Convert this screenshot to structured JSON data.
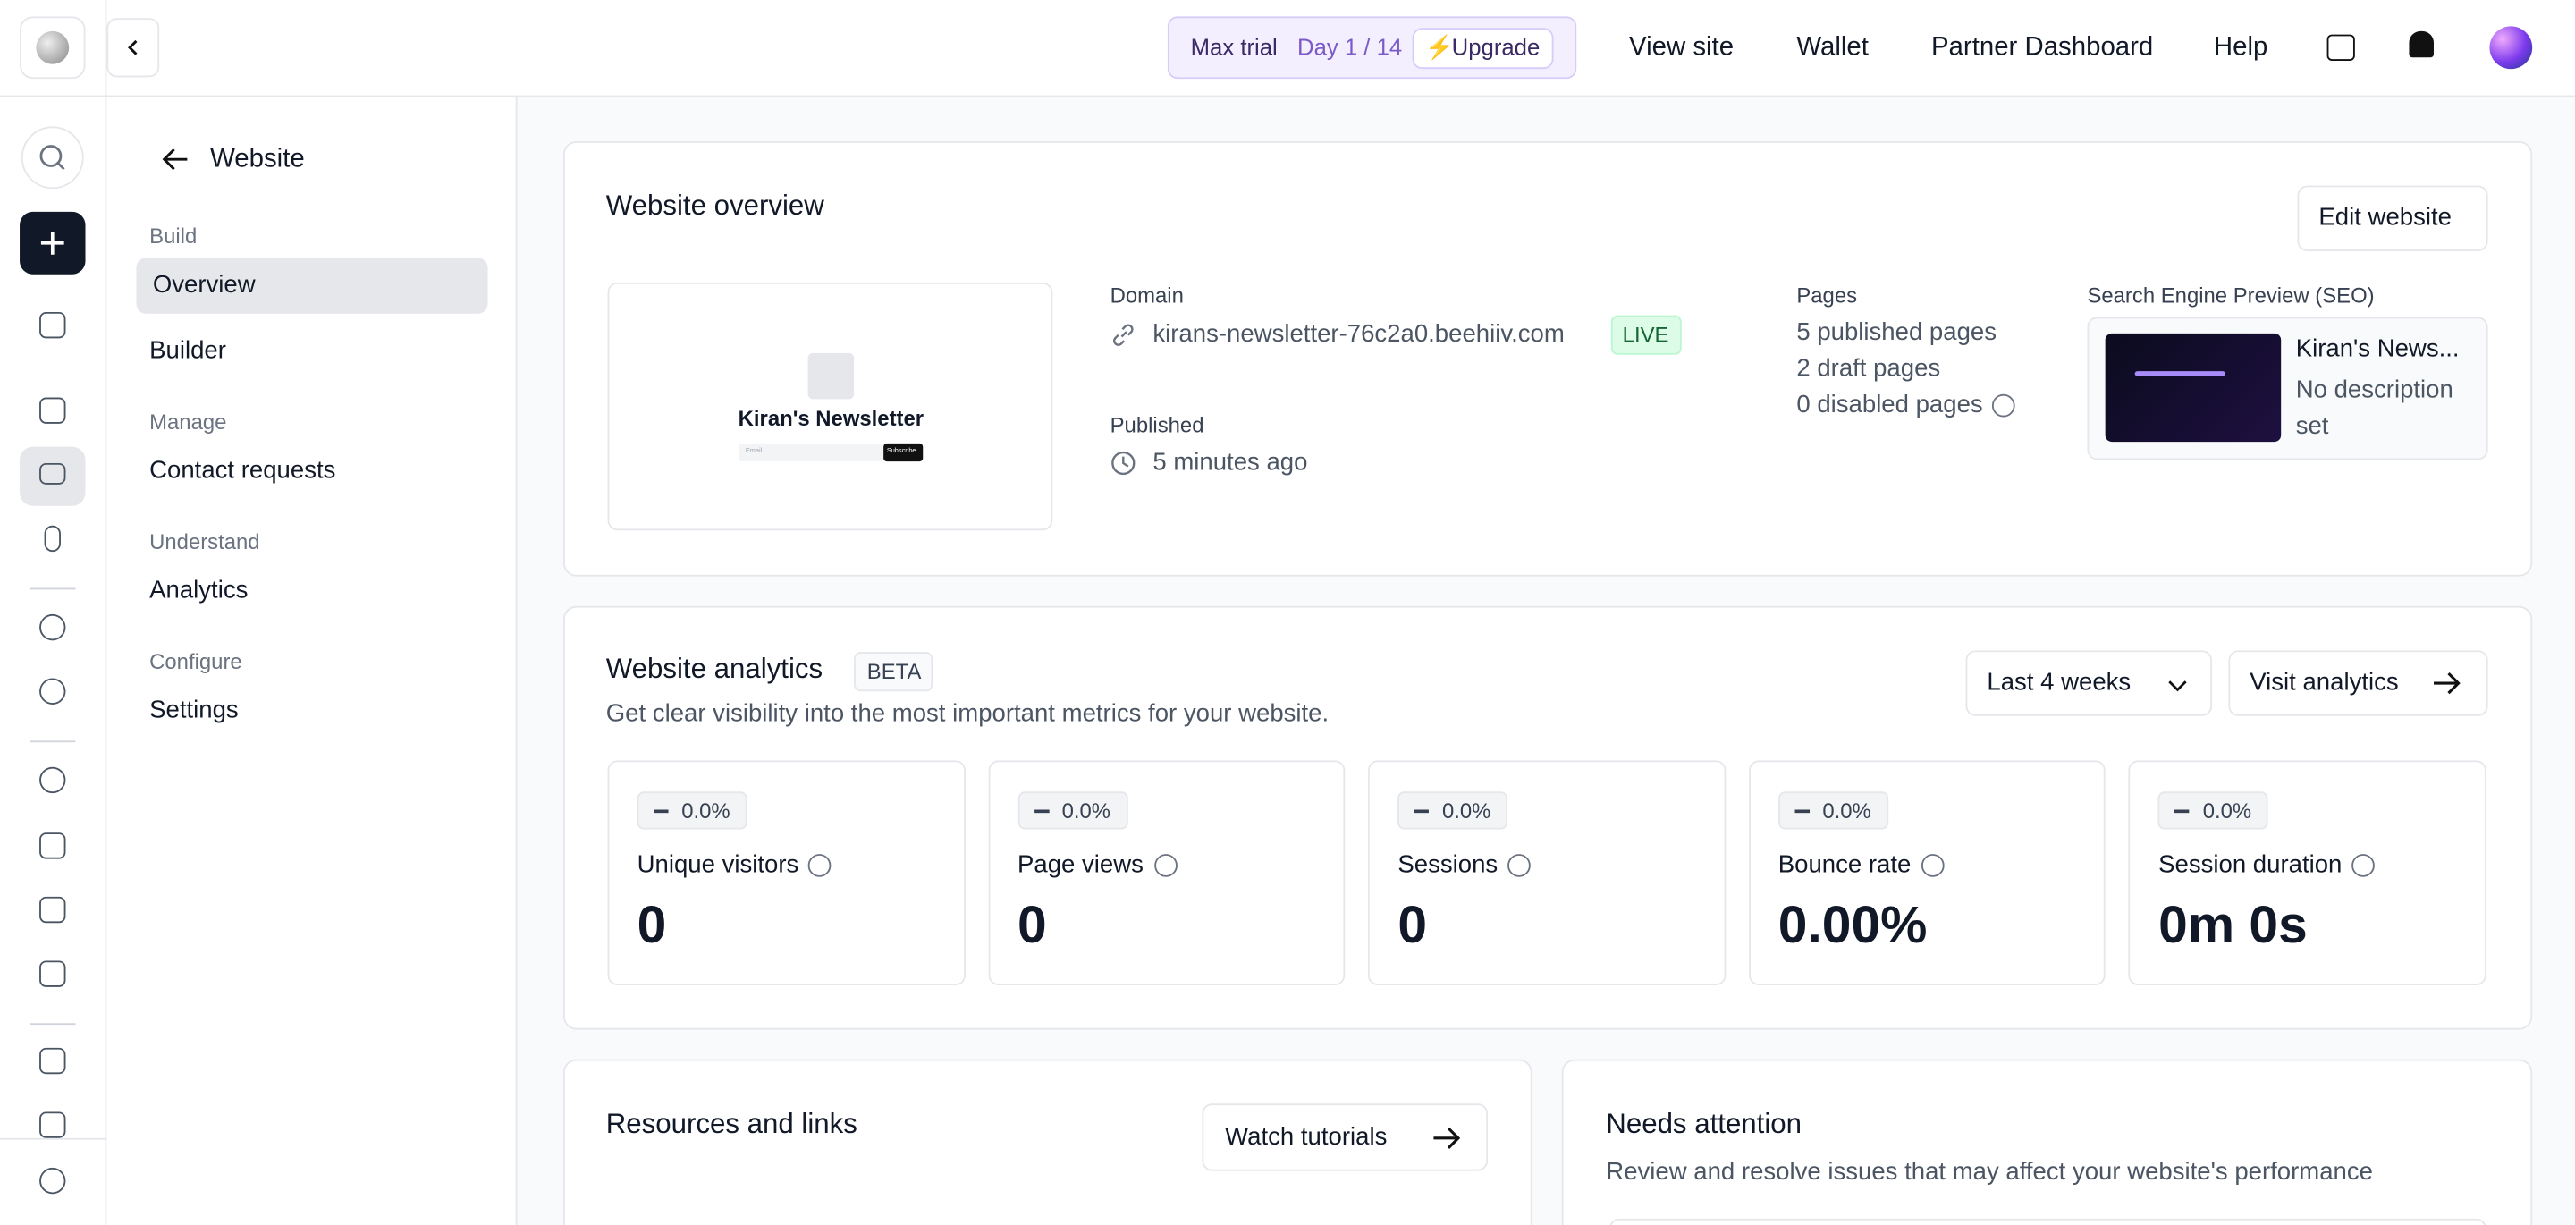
{
  "topbar": {
    "trial_label": "Max trial",
    "trial_day": "Day 1 / 14",
    "upgrade": "Upgrade",
    "nav": [
      "View site",
      "Wallet",
      "Partner Dashboard",
      "Help"
    ]
  },
  "sidebar": {
    "back_title": "Website",
    "sections": [
      {
        "heading": "Build",
        "items": [
          "Overview",
          "Builder"
        ]
      },
      {
        "heading": "Manage",
        "items": [
          "Contact requests"
        ]
      },
      {
        "heading": "Understand",
        "items": [
          "Analytics"
        ]
      },
      {
        "heading": "Configure",
        "items": [
          "Settings"
        ]
      }
    ]
  },
  "overview": {
    "title": "Website overview",
    "edit_button": "Edit website",
    "preview_name": "Kiran's Newsletter",
    "preview_input": "Email",
    "preview_button": "Subscribe",
    "domain_label": "Domain",
    "domain": "kirans-newsletter-76c2a0.beehiiv.com",
    "live": "LIVE",
    "published_label": "Published",
    "published": "5 minutes ago",
    "pages_label": "Pages",
    "pages": [
      "5 published pages",
      "2 draft pages",
      "0 disabled pages"
    ],
    "seo_label": "Search Engine Preview (SEO)",
    "seo_title": "Kiran's News...",
    "seo_desc": "No description set"
  },
  "analytics": {
    "title": "Website analytics",
    "badge": "BETA",
    "subtitle": "Get clear visibility into the most important metrics for your website.",
    "range": "Last 4 weeks",
    "visit": "Visit analytics",
    "metrics": [
      {
        "change": "0.0%",
        "label": "Unique visitors",
        "value": "0"
      },
      {
        "change": "0.0%",
        "label": "Page views",
        "value": "0"
      },
      {
        "change": "0.0%",
        "label": "Sessions",
        "value": "0"
      },
      {
        "change": "0.0%",
        "label": "Bounce rate",
        "value": "0.00%"
      },
      {
        "change": "0.0%",
        "label": "Session duration",
        "value": "0m 0s"
      }
    ]
  },
  "resources": {
    "title": "Resources and links",
    "button": "Watch tutorials"
  },
  "attention": {
    "title": "Needs attention",
    "subtitle": "Review and resolve issues that may affect your website's performance"
  }
}
